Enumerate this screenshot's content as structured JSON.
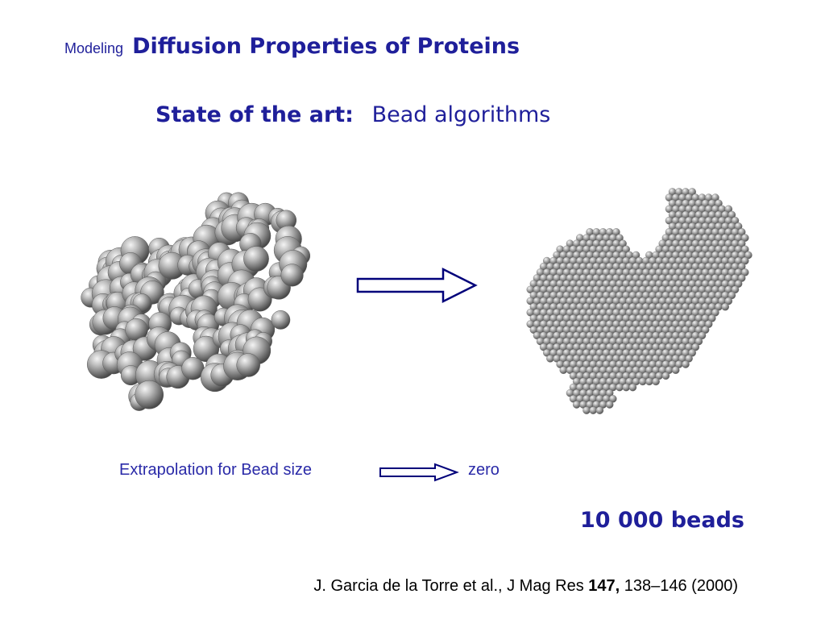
{
  "header": {
    "prefix": "Modeling",
    "title": "Diffusion Properties of Proteins"
  },
  "subtitle": {
    "bold_part": "State of the art:",
    "normal_part": "Bead algorithms"
  },
  "figures": {
    "left": "atomic-sphere-model",
    "right": "bead-model"
  },
  "extrapolation": {
    "label": "Extrapolation for Bead size",
    "target": "zero"
  },
  "bead_count": "10 000 beads",
  "reference": {
    "authors_journal": "J. Garcia de la Torre et al., J Mag Res",
    "volume": "147,",
    "pages_year": "138–146 (2000)"
  },
  "colors": {
    "title_blue": "#1f1f9a",
    "arrow_navy": "#00007a"
  }
}
